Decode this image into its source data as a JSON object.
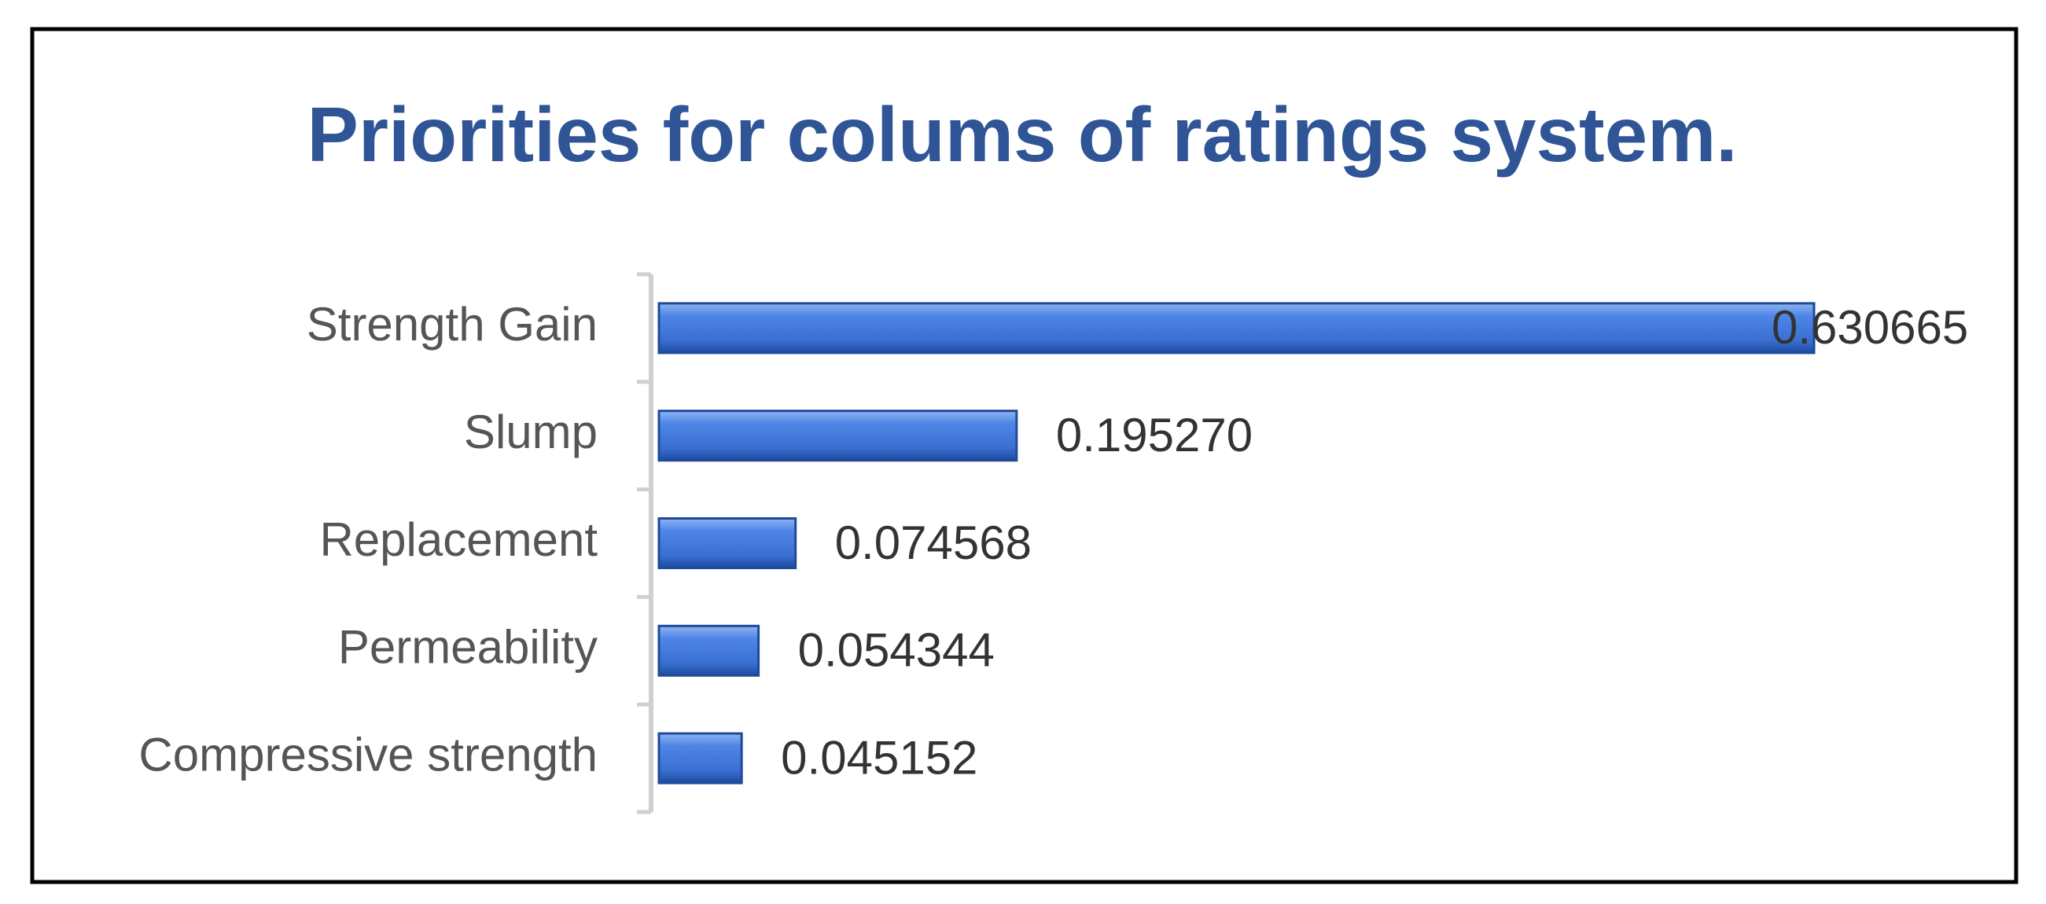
{
  "chart_data": {
    "type": "barh",
    "title": "Priorities for colums of ratings system.",
    "categories": [
      "Strength Gain",
      "Slump",
      "Replacement",
      "Permeability",
      "Compressive strength"
    ],
    "values": [
      0.630665,
      0.19527,
      0.074568,
      0.054344,
      0.045152
    ],
    "value_labels": [
      "0.630665",
      "0.195270",
      "0.074568",
      "0.054344",
      "0.045152"
    ],
    "color": "#3a6fd1"
  }
}
